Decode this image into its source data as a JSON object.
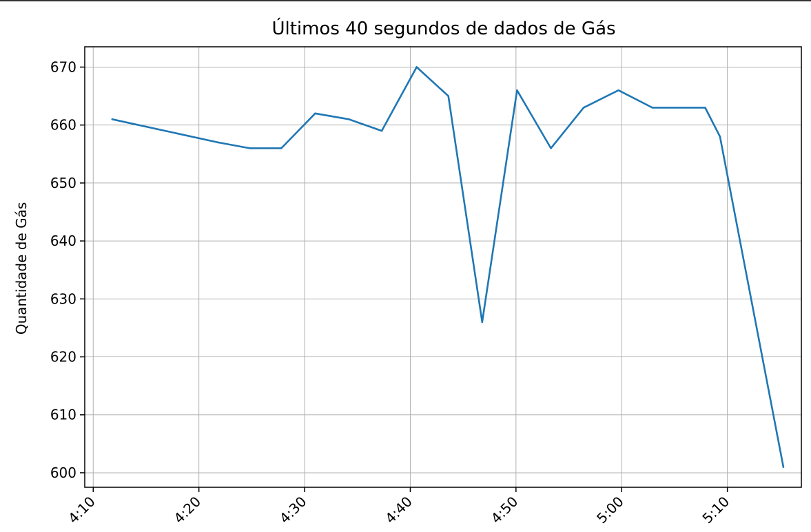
{
  "chart_data": {
    "type": "line",
    "title": "Últimos 40 segundos de dados de Gás",
    "xlabel": "",
    "ylabel": "Quantidade de Gás",
    "x_tick_labels": [
      "4:10",
      "4:20",
      "4:30",
      "4:40",
      "4:50",
      "5:00",
      "5:10"
    ],
    "y_tick_labels": [
      "600",
      "610",
      "620",
      "630",
      "640",
      "650",
      "660",
      "670"
    ],
    "y_ticks": [
      600,
      610,
      620,
      630,
      640,
      650,
      660,
      670
    ],
    "xlim": [
      249.2,
      317.0
    ],
    "ylim": [
      597.5,
      673.5
    ],
    "grid": true,
    "line_color": "#1f77b4",
    "series": [
      {
        "x": [
          251.8,
          261.8,
          264.8,
          267.8,
          271.0,
          274.2,
          277.3,
          280.6,
          283.6,
          286.8,
          290.1,
          293.3,
          296.4,
          299.7,
          302.9,
          307.9,
          309.3,
          315.3
        ],
        "values": [
          661,
          657,
          656,
          656,
          662,
          661,
          659,
          670,
          665,
          626,
          666,
          656,
          663,
          666,
          663,
          663,
          658,
          601
        ]
      }
    ]
  }
}
